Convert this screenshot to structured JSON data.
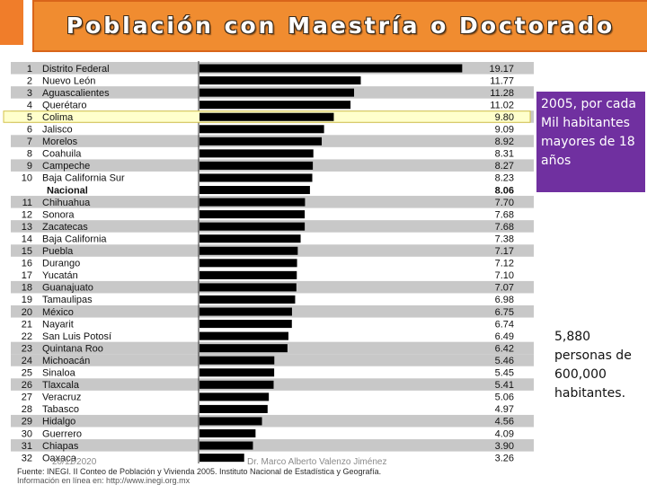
{
  "header": {
    "title": "Población con Maestría o Doctorado"
  },
  "note_box": {
    "text": "2005, por cada Mil habitantes mayores de 18 años"
  },
  "side_note": {
    "text": "5,880 personas de 600,000 habitantes."
  },
  "footer": {
    "date": "20/11/2020",
    "author": "Dr. Marco Alberto Valenzo Jiménez"
  },
  "source": {
    "line1": "Fuente: INEGI. II Conteo de Población y Vivienda 2005. Instituto Nacional de Estadística y Geografía.",
    "line2": "Información en línea en: http://www.inegi.org.mx"
  },
  "colors": {
    "title_bg": "#f08c30",
    "note_bg": "#7030a0",
    "bar": "#000000",
    "row_gray": "#c8c8c8",
    "highlight": "#ffffcc"
  },
  "chart_data": {
    "type": "bar",
    "orientation": "horizontal",
    "title": "Población con Maestría o Doctorado",
    "xlabel": "",
    "ylabel": "",
    "xlim": [
      0,
      20
    ],
    "highlight": "Colima",
    "rows": [
      {
        "rank": "1",
        "name": "Distrito Federal",
        "value": 19.17
      },
      {
        "rank": "2",
        "name": "Nuevo León",
        "value": 11.77
      },
      {
        "rank": "3",
        "name": "Aguascalientes",
        "value": 11.28
      },
      {
        "rank": "4",
        "name": "Querétaro",
        "value": 11.02
      },
      {
        "rank": "5",
        "name": "Colima",
        "value": 9.8
      },
      {
        "rank": "6",
        "name": "Jalisco",
        "value": 9.09
      },
      {
        "rank": "7",
        "name": "Morelos",
        "value": 8.92
      },
      {
        "rank": "8",
        "name": "Coahuila",
        "value": 8.31
      },
      {
        "rank": "9",
        "name": "Campeche",
        "value": 8.27
      },
      {
        "rank": "10",
        "name": "Baja California Sur",
        "value": 8.23
      },
      {
        "rank": "",
        "name": "Nacional",
        "value": 8.06,
        "national": true
      },
      {
        "rank": "11",
        "name": "Chihuahua",
        "value": 7.7
      },
      {
        "rank": "12",
        "name": "Sonora",
        "value": 7.68
      },
      {
        "rank": "13",
        "name": "Zacatecas",
        "value": 7.68
      },
      {
        "rank": "14",
        "name": "Baja California",
        "value": 7.38
      },
      {
        "rank": "15",
        "name": "Puebla",
        "value": 7.17
      },
      {
        "rank": "16",
        "name": "Durango",
        "value": 7.12
      },
      {
        "rank": "17",
        "name": "Yucatán",
        "value": 7.1
      },
      {
        "rank": "18",
        "name": "Guanajuato",
        "value": 7.07
      },
      {
        "rank": "19",
        "name": "Tamaulipas",
        "value": 6.98
      },
      {
        "rank": "20",
        "name": "México",
        "value": 6.75
      },
      {
        "rank": "21",
        "name": "Nayarit",
        "value": 6.74
      },
      {
        "rank": "22",
        "name": "San Luis Potosí",
        "value": 6.49
      },
      {
        "rank": "23",
        "name": "Quintana Roo",
        "value": 6.42
      },
      {
        "rank": "24",
        "name": "Michoacán",
        "value": 5.46
      },
      {
        "rank": "25",
        "name": "Sinaloa",
        "value": 5.45
      },
      {
        "rank": "26",
        "name": "Tlaxcala",
        "value": 5.41
      },
      {
        "rank": "27",
        "name": "Veracruz",
        "value": 5.06
      },
      {
        "rank": "28",
        "name": "Tabasco",
        "value": 4.97
      },
      {
        "rank": "29",
        "name": "Hidalgo",
        "value": 4.56
      },
      {
        "rank": "30",
        "name": "Guerrero",
        "value": 4.09
      },
      {
        "rank": "31",
        "name": "Chiapas",
        "value": 3.9
      },
      {
        "rank": "32",
        "name": "Oaxaca",
        "value": 3.26
      }
    ]
  }
}
